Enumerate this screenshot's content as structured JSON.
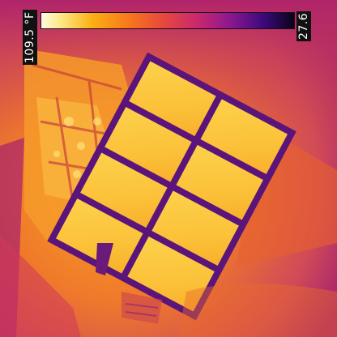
{
  "scale": {
    "max_label": "109.5 °F",
    "min_label": "27.6"
  }
}
